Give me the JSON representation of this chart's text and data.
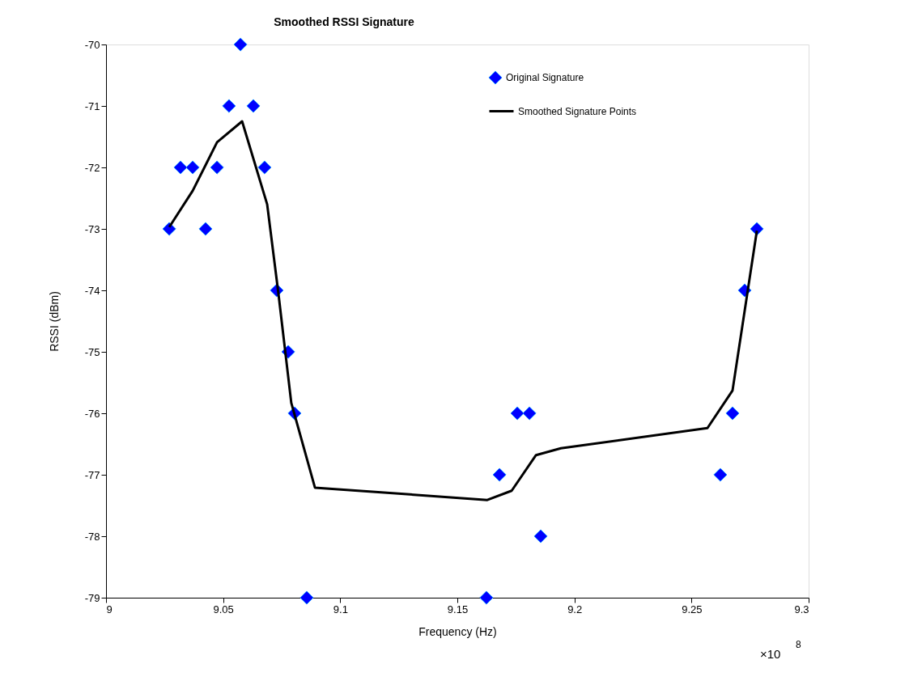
{
  "chart_data": {
    "type": "scatter",
    "title": "Smoothed RSSI Signature",
    "xlabel": "Frequency (Hz)",
    "ylabel": "RSSI (dBm)",
    "xlim": [
      9,
      9.3
    ],
    "xticks": [
      9,
      9.05,
      9.1,
      9.15,
      9.2,
      9.25,
      9.3
    ],
    "ylim": [
      -79,
      -70
    ],
    "yticks": [
      -70,
      -71,
      -72,
      -73,
      -74,
      -75,
      -76,
      -77,
      -78,
      -79
    ],
    "grid": false,
    "legend": "top right",
    "annotations": [
      "×10$^{8}$"
    ],
    "series": [
      {
        "name": "Original Signature",
        "marker": "diamond",
        "color": "#0000ff",
        "x": [
          9.027,
          9.0318,
          9.037,
          9.0425,
          9.0474,
          9.0525,
          9.0574,
          9.0629,
          9.0677,
          9.0729,
          9.0778,
          9.0805,
          9.0857,
          9.1624,
          9.168,
          9.1756,
          9.1808,
          9.1856,
          9.2623,
          9.2675,
          9.2727,
          9.2779
        ],
        "values": [
          -73,
          -72,
          -72,
          -73,
          -72,
          -71,
          -70,
          -71,
          -72,
          -74,
          -75,
          -76,
          -79,
          -79,
          -77,
          -76,
          -76,
          -78,
          -77,
          -76,
          -74,
          -73
        ]
      },
      {
        "name": "Smoothed Signature Points",
        "type": "line",
        "line_style": "solid",
        "color": "#000000",
        "x": [
          9.027,
          9.037,
          9.0474,
          9.0581,
          9.0688,
          9.0736,
          9.0791,
          9.0892,
          9.1628,
          9.1732,
          9.1836,
          9.1942,
          9.2568,
          9.2675,
          9.2779
        ],
        "values": [
          -72.97,
          -72.38,
          -71.59,
          -71.25,
          -72.6,
          -74.05,
          -75.83,
          -77.21,
          -77.41,
          -77.26,
          -76.68,
          -76.57,
          -76.24,
          -75.63,
          -73.03
        ]
      }
    ]
  }
}
